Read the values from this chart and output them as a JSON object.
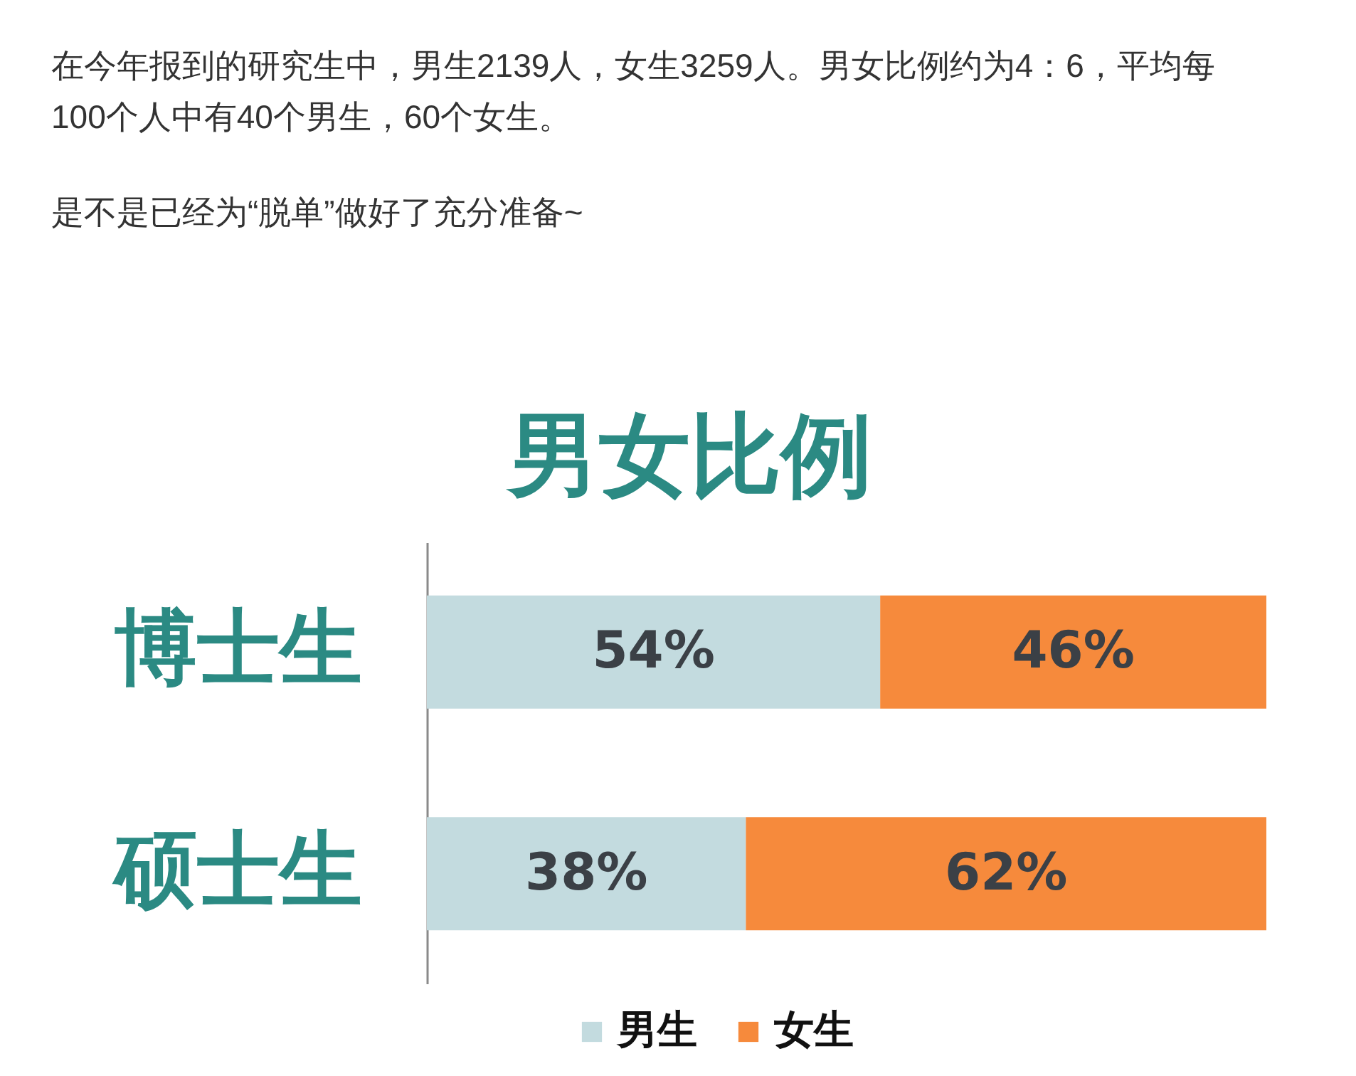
{
  "chart_data": {
    "type": "bar",
    "orientation": "horizontal",
    "stacked": true,
    "title": "男女比例",
    "annotations": [
      "在今年报到的研究生中，男生2139人，女生3259人。男女比例约为4：6，平均每100个人中有40个男生，60个女生。",
      "是不是已经为“脱单”做好了充分准备~"
    ],
    "categories": [
      "博士生",
      "硕士生"
    ],
    "series": [
      {
        "name": "男生",
        "color": "#c3dbdf",
        "values": [
          54,
          38
        ],
        "value_labels": [
          "54%",
          "38%"
        ]
      },
      {
        "name": "女生",
        "color": "#f68a3c",
        "values": [
          46,
          62
        ],
        "value_labels": [
          "46%",
          "62%"
        ]
      }
    ],
    "xlim": [
      0,
      100
    ],
    "tick_labels": "y",
    "legend": "bottom"
  }
}
